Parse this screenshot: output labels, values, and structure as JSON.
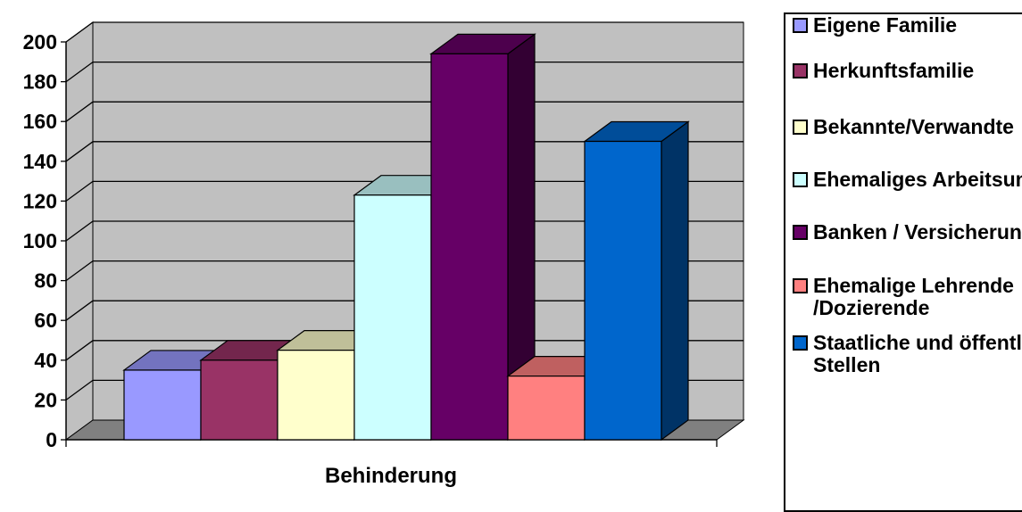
{
  "chart_data": {
    "type": "bar",
    "categories": [
      "Behinderung"
    ],
    "xlabel": "Behinderung",
    "ylim": [
      0,
      200
    ],
    "yticks": [
      0,
      20,
      40,
      60,
      80,
      100,
      120,
      140,
      160,
      180,
      200
    ],
    "grid": true,
    "legend_position": "right",
    "series": [
      {
        "name": "Eigene Familie",
        "values": [
          35
        ],
        "color": "#9999ff"
      },
      {
        "name": "Herkunftsfamilie",
        "values": [
          40
        ],
        "color": "#993366"
      },
      {
        "name": "Bekannte/Verwandte",
        "values": [
          45
        ],
        "color": "#ffffcc"
      },
      {
        "name": "Ehemaliges Arbeitsumfeld",
        "values": [
          123
        ],
        "color": "#ccffff"
      },
      {
        "name": "Banken / Versicherungen",
        "values": [
          194
        ],
        "color": "#660066"
      },
      {
        "name": "Ehemalige Lehrende\n/Dozierende",
        "values": [
          32
        ],
        "color": "#ff8080"
      },
      {
        "name": "Staatliche und öffentliche\nStellen",
        "values": [
          150
        ],
        "color": "#0066cc"
      }
    ]
  },
  "legend": {
    "items": [
      {
        "label": "Eigene Familie",
        "color": "#9999ff"
      },
      {
        "label": "Herkunftsfamilie",
        "color": "#993366"
      },
      {
        "label": "Bekannte/Verwandte",
        "color": "#ffffcc"
      },
      {
        "label": "Ehemaliges Arbeitsumfeld",
        "color": "#ccffff"
      },
      {
        "label": "Banken / Versicherungen",
        "color": "#660066"
      },
      {
        "label": "Ehemalige Lehrende\n/Dozierende",
        "color": "#ff8080"
      },
      {
        "label": "Staatliche und öffentliche\nStellen",
        "color": "#0066cc"
      }
    ]
  }
}
